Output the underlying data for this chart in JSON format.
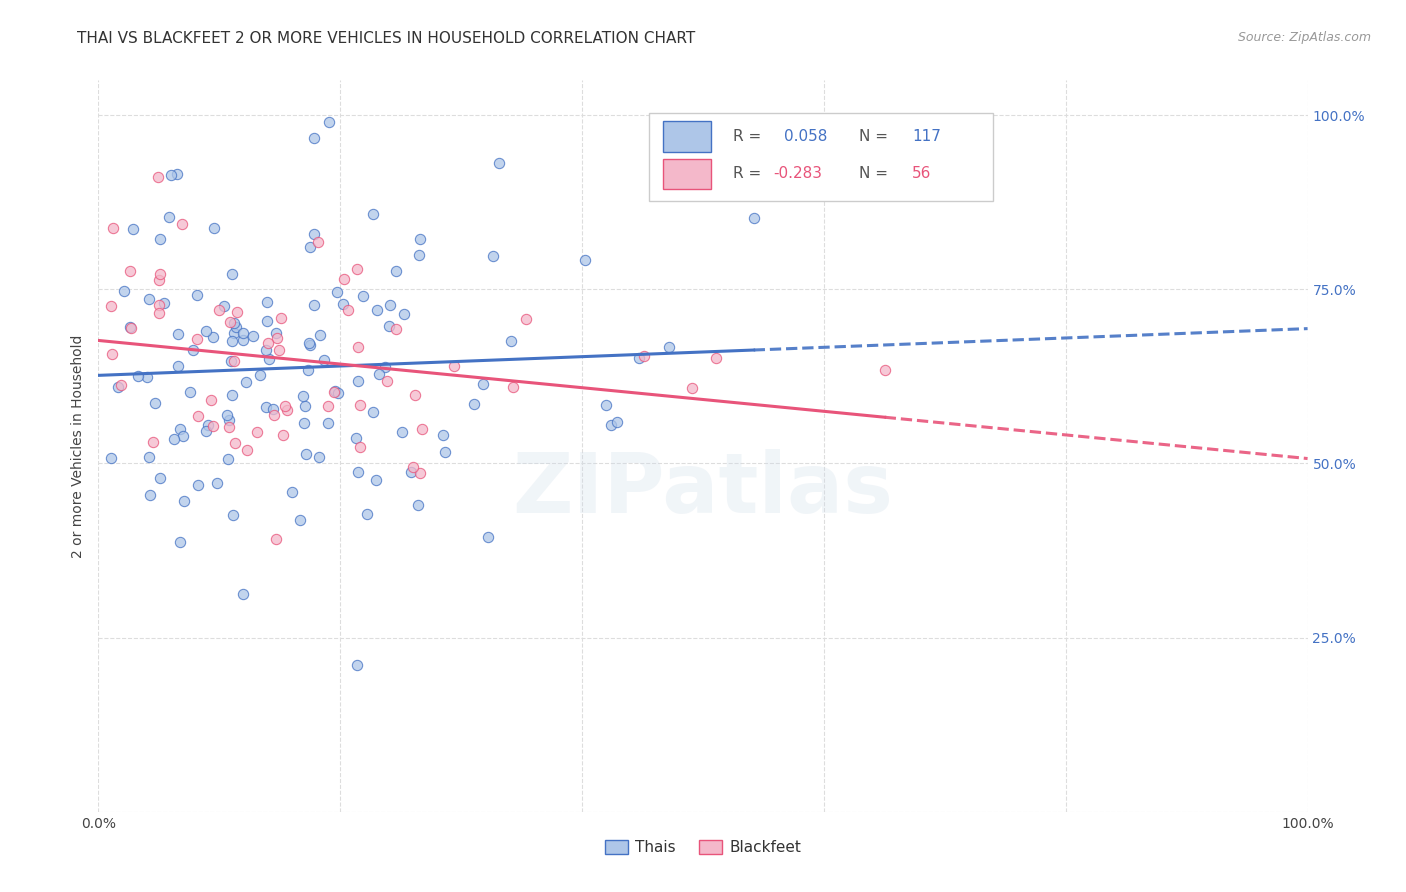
{
  "title": "THAI VS BLACKFEET 2 OR MORE VEHICLES IN HOUSEHOLD CORRELATION CHART",
  "source": "Source: ZipAtlas.com",
  "ylabel": "2 or more Vehicles in Household",
  "watermark": "ZIPatlas",
  "thais_R": 0.058,
  "thais_N": 117,
  "blackfeet_R": -0.283,
  "blackfeet_N": 56,
  "dot_color_thais": "#aec6e8",
  "dot_color_blackfeet": "#f4b8ca",
  "line_color_thais": "#4472c4",
  "line_color_blackfeet": "#e8547a",
  "background_color": "#ffffff",
  "grid_color": "#dddddd",
  "dot_size": 55,
  "dot_alpha": 0.75,
  "seed": 17
}
